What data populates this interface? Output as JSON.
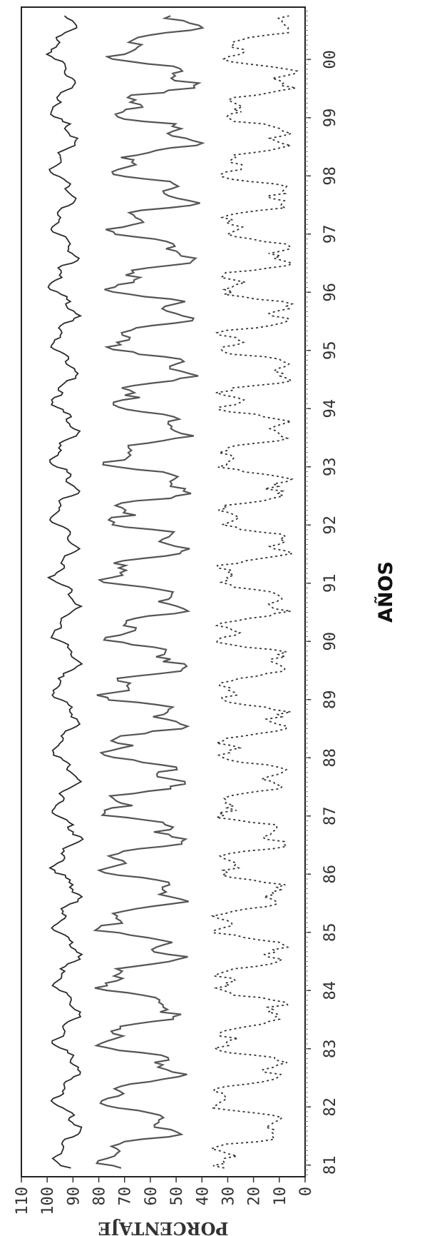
{
  "chart_data": {
    "type": "line",
    "title": "",
    "xlabel": "AÑOS",
    "ylabel": "PORCENTAJE",
    "ylim": [
      0,
      110
    ],
    "yticks": [
      "0",
      "10",
      "20",
      "30",
      "40",
      "50",
      "60",
      "70",
      "80",
      "90",
      "100",
      "110"
    ],
    "xlim": [
      1980.8,
      2000.9
    ],
    "xticks": [
      {
        "label": "81",
        "value": 1981
      },
      {
        "label": "82",
        "value": 1982
      },
      {
        "label": "83",
        "value": 1983
      },
      {
        "label": "84",
        "value": 1984
      },
      {
        "label": "85",
        "value": 1985
      },
      {
        "label": "86",
        "value": 1986
      },
      {
        "label": "87",
        "value": 1987
      },
      {
        "label": "88",
        "value": 1988
      },
      {
        "label": "89",
        "value": 1989
      },
      {
        "label": "90",
        "value": 1990
      },
      {
        "label": "91",
        "value": 1991
      },
      {
        "label": "92",
        "value": 1992
      },
      {
        "label": "93",
        "value": 1993
      },
      {
        "label": "94",
        "value": 1994
      },
      {
        "label": "95",
        "value": 1995
      },
      {
        "label": "96",
        "value": 1996
      },
      {
        "label": "97",
        "value": 1997
      },
      {
        "label": "98",
        "value": 1998
      },
      {
        "label": "99",
        "value": 1999
      },
      {
        "label": "00",
        "value": 2000
      }
    ],
    "orientation": "rotated-90-clockwise",
    "grid": false,
    "series": [
      {
        "style": "solid-thin",
        "color": "#2a2a2a",
        "base": 92,
        "amp": 4,
        "trend_end": 94
      },
      {
        "style": "solid",
        "color": "#555555",
        "base": 65,
        "amp": 13,
        "trend_end": 58
      },
      {
        "style": "dotted",
        "color": "#333333",
        "base": 22,
        "amp": 12,
        "trend_end": 18
      }
    ]
  }
}
